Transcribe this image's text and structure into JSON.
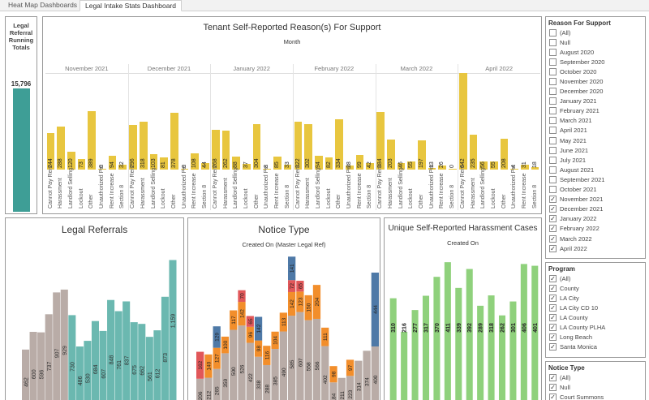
{
  "tabs": [
    "Heat Map Dashboards",
    "Legal Intake Stats Dashboard"
  ],
  "kpi": {
    "title_lines": [
      "Legal",
      "Referral",
      "Running",
      "Totals"
    ],
    "value": "15,796"
  },
  "tenant_chart": {
    "title": "Tenant Self-Reported Reason(s) For Support",
    "axis_title": "Month",
    "bar_color": "#e8c63f",
    "categories": [
      "Cannot Pay Rent",
      "Harassment",
      "Landlord Selling",
      "Lockout",
      "Other",
      "Unauthorized Pet",
      "Rent Increase",
      "Section 8"
    ],
    "months": [
      {
        "name": "November 2021",
        "values": [
          244,
          288,
          120,
          73,
          389,
          0,
          94,
          32
        ]
      },
      {
        "name": "December 2021",
        "values": [
          296,
          318,
          103,
          81,
          378,
          0,
          108,
          44
        ]
      },
      {
        "name": "January 2022",
        "values": [
          268,
          262,
          88,
          37,
          304,
          8,
          85,
          33
        ]
      },
      {
        "name": "February 2022",
        "values": [
          322,
          302,
          94,
          82,
          334,
          28,
          99,
          42
        ]
      },
      {
        "name": "March 2022",
        "values": [
          384,
          203,
          46,
          55,
          197,
          13,
          26,
          0
        ]
      },
      {
        "name": "April 2022",
        "values": [
          642,
          235,
          56,
          55,
          208,
          4,
          31,
          18
        ]
      }
    ]
  },
  "legal_referrals": {
    "title": "Legal Referrals",
    "colors": {
      "earlier": "#b9aca7",
      "recent": "#6bb8b0"
    },
    "bars": [
      {
        "value": 462,
        "recent": false
      },
      {
        "value": 600,
        "recent": false
      },
      {
        "value": 596,
        "recent": false
      },
      {
        "value": 737,
        "recent": false
      },
      {
        "value": 907,
        "recent": false
      },
      {
        "value": 929,
        "recent": false
      },
      {
        "value": 730,
        "recent": true
      },
      {
        "value": 486,
        "recent": true
      },
      {
        "value": 530,
        "recent": true
      },
      {
        "value": 684,
        "recent": true
      },
      {
        "value": 607,
        "recent": true
      },
      {
        "value": 848,
        "recent": true
      },
      {
        "value": 761,
        "recent": true
      },
      {
        "value": 837,
        "recent": true
      },
      {
        "value": 675,
        "recent": true
      },
      {
        "value": 662,
        "recent": true
      },
      {
        "value": 561,
        "recent": true
      },
      {
        "value": 612,
        "recent": true
      },
      {
        "value": 873,
        "recent": true
      },
      {
        "value": 1159,
        "recent": true
      }
    ]
  },
  "notice_type": {
    "title": "Notice Type",
    "subtitle": "Created On (Master Legal Ref)",
    "colors": [
      "#b9aca7",
      "#f28e2b",
      "#e15759",
      "#4e79a7"
    ],
    "stacks": [
      [
        206,
        0,
        162,
        0
      ],
      [
        212,
        140,
        0,
        0
      ],
      [
        265,
        127,
        0,
        129
      ],
      [
        359,
        100,
        0,
        0
      ],
      [
        500,
        117,
        0,
        0
      ],
      [
        526,
        142,
        70,
        0
      ],
      [
        422,
        96,
        65,
        0
      ],
      [
        338,
        98,
        0,
        142
      ],
      [
        288,
        116,
        0,
        0
      ],
      [
        385,
        104,
        0,
        0
      ],
      [
        490,
        113,
        0,
        0
      ],
      [
        585,
        142,
        72,
        141
      ],
      [
        607,
        123,
        65,
        0
      ],
      [
        558,
        150,
        0,
        0
      ],
      [
        566,
        204,
        0,
        0
      ],
      [
        402,
        111,
        0,
        0
      ],
      [
        184,
        98,
        0,
        0
      ],
      [
        211,
        0,
        0,
        0
      ],
      [
        223,
        97,
        0,
        0
      ],
      [
        314,
        0,
        0,
        0
      ],
      [
        374,
        0,
        0,
        0
      ],
      [
        400,
        0,
        0,
        444
      ]
    ]
  },
  "harassment": {
    "title": "Unique Self-Reported Harassment Cases",
    "subtitle": "Created On",
    "bar_color": "#8fd17c",
    "values": [
      310,
      216,
      277,
      317,
      370,
      411,
      339,
      392,
      289,
      318,
      262,
      301,
      406,
      401
    ]
  },
  "filters": [
    {
      "title": "Reason For Support",
      "items": [
        {
          "label": "(All)",
          "checked": false
        },
        {
          "label": "Null",
          "checked": false
        },
        {
          "label": "August 2020",
          "checked": false
        },
        {
          "label": "September 2020",
          "checked": false
        },
        {
          "label": "October 2020",
          "checked": false
        },
        {
          "label": "November 2020",
          "checked": false
        },
        {
          "label": "December 2020",
          "checked": false
        },
        {
          "label": "January 2021",
          "checked": false
        },
        {
          "label": "February 2021",
          "checked": false
        },
        {
          "label": "March 2021",
          "checked": false
        },
        {
          "label": "April 2021",
          "checked": false
        },
        {
          "label": "May 2021",
          "checked": false
        },
        {
          "label": "June 2021",
          "checked": false
        },
        {
          "label": "July 2021",
          "checked": false
        },
        {
          "label": "August 2021",
          "checked": false
        },
        {
          "label": "September 2021",
          "checked": false
        },
        {
          "label": "October 2021",
          "checked": false
        },
        {
          "label": "November 2021",
          "checked": true
        },
        {
          "label": "December 2021",
          "checked": true
        },
        {
          "label": "January 2022",
          "checked": true
        },
        {
          "label": "February 2022",
          "checked": true
        },
        {
          "label": "March 2022",
          "checked": true
        },
        {
          "label": "April 2022",
          "checked": true
        }
      ]
    },
    {
      "title": "Program",
      "items": [
        {
          "label": "(All)",
          "checked": true
        },
        {
          "label": "County",
          "checked": true
        },
        {
          "label": "LA City",
          "checked": true
        },
        {
          "label": "LA City CD 10",
          "checked": true
        },
        {
          "label": "LA County",
          "checked": true
        },
        {
          "label": "LA County PLHA",
          "checked": true
        },
        {
          "label": "Long Beach",
          "checked": true
        },
        {
          "label": "Santa Monica",
          "checked": true
        }
      ]
    },
    {
      "title": "Notice Type",
      "items": [
        {
          "label": "(All)",
          "checked": true
        },
        {
          "label": "Null",
          "checked": true
        },
        {
          "label": "Court Summons",
          "checked": true
        }
      ]
    }
  ]
}
